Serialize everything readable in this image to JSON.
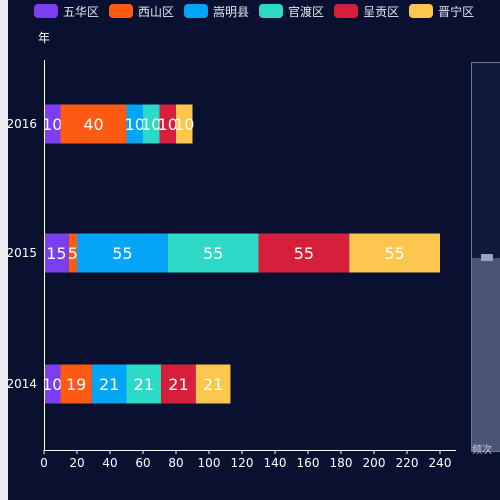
{
  "chart_data": {
    "type": "bar",
    "orientation": "horizontal",
    "stacked": true,
    "categories": [
      "2016",
      "2015",
      "2014"
    ],
    "ylabel": "年",
    "xlim": [
      0,
      240
    ],
    "xticks": [
      0,
      20,
      40,
      60,
      80,
      100,
      120,
      140,
      160,
      180,
      200,
      220,
      240
    ],
    "grid": false,
    "legend_position": "top",
    "series": [
      {
        "name": "五华区",
        "color": "#7b3ff2",
        "values": [
          10,
          15,
          10
        ]
      },
      {
        "name": "西山区",
        "color": "#ff5a14",
        "values": [
          40,
          5,
          19
        ]
      },
      {
        "name": "嵩明县",
        "color": "#04a5f5",
        "values": [
          10,
          55,
          21
        ]
      },
      {
        "name": "官渡区",
        "color": "#2fd9c8",
        "values": [
          10,
          55,
          21
        ]
      },
      {
        "name": "呈贡区",
        "color": "#d61f3a",
        "values": [
          10,
          55,
          21
        ]
      },
      {
        "name": "晋宁区",
        "color": "#fcc64f",
        "values": [
          10,
          55,
          21
        ]
      }
    ]
  },
  "data_zoom": {
    "label": "频次"
  }
}
